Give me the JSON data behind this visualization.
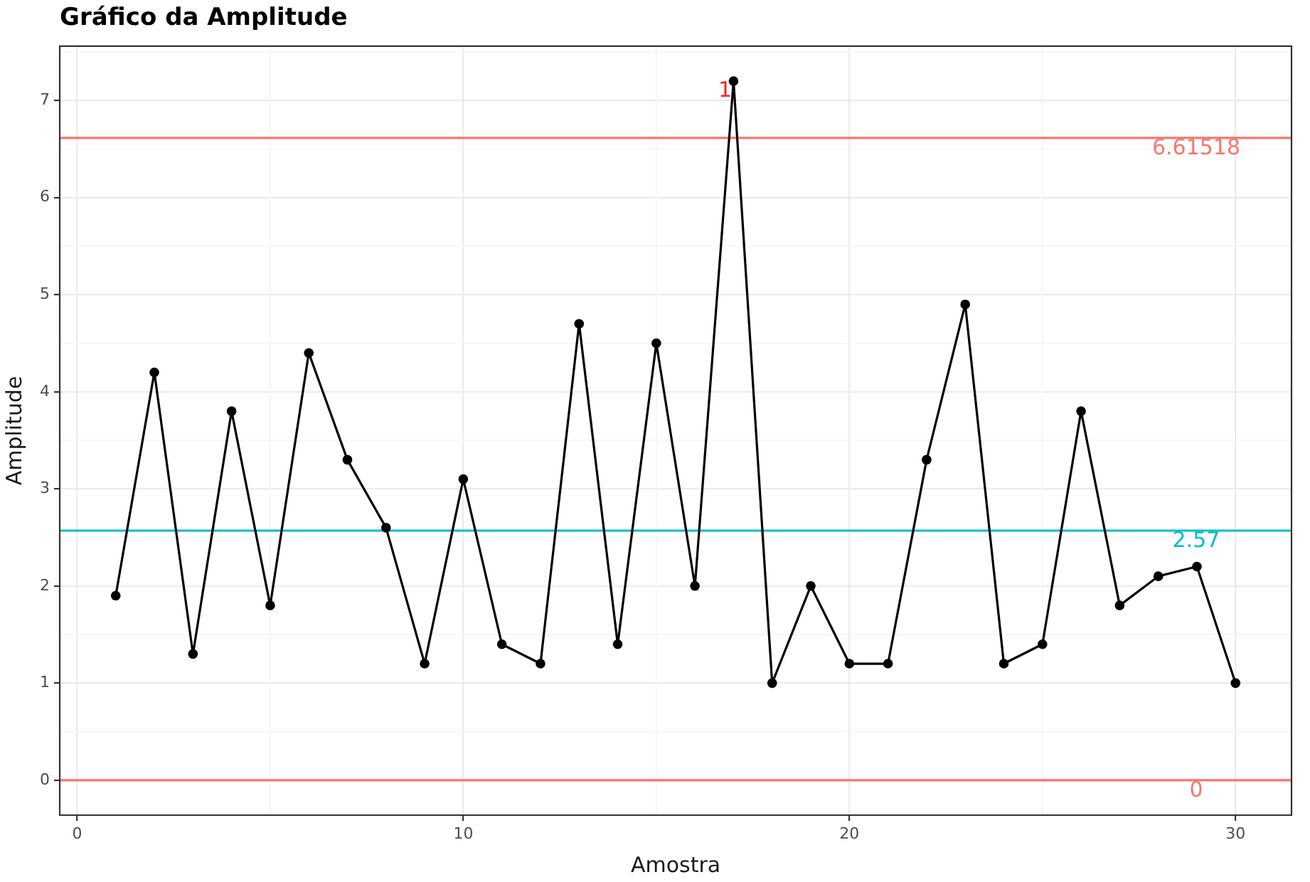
{
  "chart_data": {
    "type": "line",
    "title": "Gráfico da Amplitude",
    "xlabel": "Amostra",
    "ylabel": "Amplitude",
    "x": [
      1,
      2,
      3,
      4,
      5,
      6,
      7,
      8,
      9,
      10,
      11,
      12,
      13,
      14,
      15,
      16,
      17,
      18,
      19,
      20,
      21,
      22,
      23,
      24,
      25,
      26,
      27,
      28,
      29,
      30
    ],
    "series": [
      {
        "color": "#000000",
        "values": [
          1.9,
          4.2,
          1.3,
          3.8,
          1.8,
          4.4,
          3.3,
          2.6,
          1.2,
          3.1,
          1.4,
          1.2,
          4.7,
          1.4,
          4.5,
          2.0,
          7.2,
          1.0,
          2.0,
          1.2,
          1.2,
          3.3,
          4.9,
          1.2,
          1.4,
          3.8,
          1.8,
          2.1,
          2.2,
          1.0
        ]
      }
    ],
    "xlim": [
      -0.45,
      31.45
    ],
    "xticks": [
      0,
      10,
      20,
      30
    ],
    "ylim": [
      -0.36,
      7.56
    ],
    "yticks": [
      0,
      1,
      2,
      3,
      4,
      5,
      6,
      7
    ],
    "ref_lines": [
      {
        "axis": "y",
        "value": 6.61518,
        "label": "6.61518",
        "color": "#f8766d"
      },
      {
        "axis": "y",
        "value": 2.57,
        "label": "2.57",
        "color": "#00bfc4"
      },
      {
        "axis": "y",
        "value": 0,
        "label": "0",
        "color": "#f8766d"
      }
    ],
    "annotations": [
      {
        "text": "1",
        "x": 17,
        "y": 7.2
      }
    ],
    "grid": true,
    "legend": false,
    "marker": "circle",
    "line_style": "solid"
  }
}
